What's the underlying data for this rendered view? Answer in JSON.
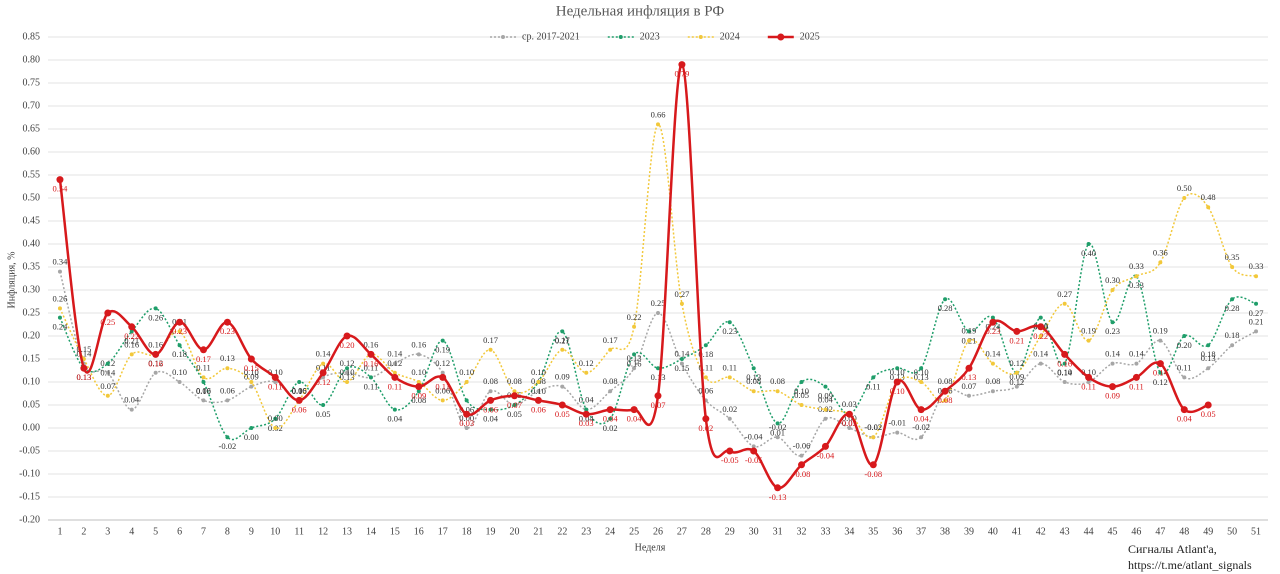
{
  "chart_data": {
    "type": "line",
    "title": "Недельная инфляция в РФ",
    "xlabel": "Неделя",
    "ylabel": "Инфляция, %",
    "annotations": [
      "Сигналы Atlant'a,",
      "https://t.me/atlant_signals"
    ],
    "categories": [
      "1",
      "2",
      "3",
      "4",
      "5",
      "6",
      "7",
      "8",
      "9",
      "10",
      "11",
      "12",
      "13",
      "14",
      "15",
      "16",
      "17",
      "18",
      "19",
      "20",
      "21",
      "22",
      "23",
      "24",
      "25",
      "26",
      "27",
      "28",
      "29",
      "30",
      "31",
      "32",
      "33",
      "34",
      "35",
      "36",
      "37",
      "38",
      "39",
      "40",
      "41",
      "42",
      "43",
      "44",
      "45",
      "46",
      "47",
      "48",
      "49",
      "50",
      "51"
    ],
    "ylim": [
      -0.2,
      0.85
    ],
    "yticks": [
      {
        "value": -0.2,
        "label": "-0.20"
      },
      {
        "value": -0.15,
        "label": "-0.15"
      },
      {
        "value": -0.1,
        "label": "-0.10"
      },
      {
        "value": -0.05,
        "label": "-0.05"
      },
      {
        "value": 0,
        "label": "0.00"
      },
      {
        "value": 0.05,
        "label": "0.05"
      },
      {
        "value": 0.1,
        "label": "0.10"
      },
      {
        "value": 0.15,
        "label": "0.15"
      },
      {
        "value": 0.2,
        "label": "0.20"
      },
      {
        "value": 0.25,
        "label": "0.25"
      },
      {
        "value": 0.3,
        "label": "0.30"
      },
      {
        "value": 0.35,
        "label": "0.35"
      },
      {
        "value": 0.4,
        "label": "0.40"
      },
      {
        "value": 0.45,
        "label": "0.45"
      },
      {
        "value": 0.5,
        "label": "0.50"
      },
      {
        "value": 0.55,
        "label": "0.55"
      },
      {
        "value": 0.6,
        "label": "0.60"
      },
      {
        "value": 0.65,
        "label": "0.65"
      },
      {
        "value": 0.7,
        "label": "0.70"
      },
      {
        "value": 0.75,
        "label": "0.75"
      },
      {
        "value": 0.8,
        "label": "0.80"
      },
      {
        "value": 0.85,
        "label": "0.85"
      }
    ],
    "grid": true,
    "legend": "top",
    "series": [
      {
        "name": "ср. 2017-2021",
        "color": "#a6a6a6",
        "style": "dotted",
        "width": 1.5,
        "values": [
          0.34,
          0.14,
          0.12,
          0.04,
          0.12,
          0.1,
          0.06,
          0.06,
          0.09,
          0.1,
          0.06,
          0.11,
          0.12,
          0.11,
          0.14,
          0.16,
          0.12,
          0.0,
          0.08,
          0.05,
          0.08,
          0.09,
          0.04,
          0.08,
          0.13,
          0.25,
          0.14,
          0.06,
          0.02,
          -0.04,
          -0.02,
          -0.06,
          0.02,
          0.0,
          -0.02,
          -0.01,
          -0.02,
          0.08,
          0.07,
          0.08,
          0.09,
          0.14,
          0.1,
          0.1,
          0.14,
          0.14,
          0.19,
          0.11,
          0.13,
          0.18,
          0.21
        ],
        "value_labels": [
          "0.34",
          "0.14",
          "0.12",
          "0.04",
          "0.12",
          "0.10",
          "0.06",
          "0.06",
          "0.09",
          "0.10",
          "0.06",
          "0.11",
          "0.12",
          "0.11",
          "0.14",
          "0.16",
          "0.12",
          "0.00",
          "0.08",
          "0.05",
          "0.08",
          "0.09",
          "0.04",
          "0.08",
          "0.13",
          "0.25",
          "0.14",
          "0.06",
          "0.02",
          "-0.04",
          "-0.02",
          "-0.06",
          "0.02",
          "0.00",
          "-0.02",
          "-0.01",
          "-0.02",
          "0.08",
          "0.07",
          "0.08",
          "0.09",
          "0.14",
          "0.10",
          "0.10",
          "0.14",
          "0.14",
          "0.19",
          "0.11",
          "0.13",
          "0.18",
          "0.21"
        ]
      },
      {
        "name": "2023",
        "color": "#1f9e6a",
        "style": "dotted",
        "width": 1.5,
        "values": [
          0.24,
          0.13,
          0.14,
          0.21,
          0.26,
          0.18,
          0.1,
          -0.02,
          0.0,
          0.02,
          0.1,
          0.05,
          0.13,
          0.11,
          0.04,
          0.08,
          0.19,
          0.06,
          0.04,
          0.05,
          0.1,
          0.21,
          0.04,
          0.02,
          0.16,
          0.13,
          0.15,
          0.18,
          0.23,
          0.13,
          0.01,
          0.1,
          0.09,
          0.03,
          0.11,
          0.13,
          0.13,
          0.28,
          0.21,
          0.24,
          0.12,
          0.24,
          0.14,
          0.4,
          0.23,
          0.33,
          0.12,
          0.2,
          0.18,
          0.28,
          0.27
        ],
        "value_labels": [
          "0.24",
          "0.13",
          "0.14",
          "0.21",
          "0.26",
          "0.18",
          "0.10",
          "-0.02",
          "0.00",
          "0.02",
          "0.10",
          "0.05",
          "0.13",
          "0.11",
          "0.04",
          "0.08",
          "0.19",
          "0.06",
          "0.04",
          "0.05",
          "0.10",
          "0.21",
          "0.04",
          "0.02",
          "0.16",
          "0.13",
          "0.15",
          "0.18",
          "0.23",
          "0.13",
          "0.01",
          "0.10",
          "0.09",
          "0.03",
          "0.11",
          "0.13",
          "0.13",
          "0.28",
          "0.21",
          "0.24",
          "0.12",
          "0.24",
          "0.14",
          "0.40",
          "0.23",
          "0.33",
          "0.12",
          "0.20",
          "0.18",
          "0.28",
          "0.27"
        ]
      },
      {
        "name": "2024",
        "color": "#f2c83a",
        "style": "dotted",
        "width": 1.5,
        "values": [
          0.26,
          0.15,
          0.07,
          0.16,
          0.16,
          0.21,
          0.11,
          0.13,
          0.1,
          0.0,
          0.06,
          0.14,
          0.1,
          0.16,
          0.12,
          0.1,
          0.06,
          0.1,
          0.17,
          0.08,
          0.1,
          0.17,
          0.12,
          0.17,
          0.22,
          0.66,
          0.27,
          0.11,
          0.11,
          0.08,
          0.08,
          0.05,
          0.04,
          0.03,
          -0.02,
          0.1,
          0.1,
          0.06,
          0.19,
          0.14,
          0.12,
          0.2,
          0.27,
          0.19,
          0.3,
          0.33,
          0.36,
          0.5,
          0.48,
          0.35,
          0.33
        ],
        "value_labels": [
          "0.26",
          "0.15",
          "0.07",
          "0.16",
          "0.16",
          "0.21",
          "0.11",
          "0.13",
          "0.10",
          "0.00",
          "0.06",
          "0.14",
          "0.10",
          "0.16",
          "0.12",
          "0.10",
          "0.06",
          "0.10",
          "0.17",
          "0.08",
          "0.10",
          "0.17",
          "0.12",
          "0.17",
          "0.22",
          "0.66",
          "0.27",
          "0.11",
          "0.11",
          "0.08",
          "0.08",
          "0.05",
          "0.04",
          "0.03",
          "-0.02",
          "0.10",
          "0.10",
          "0.06",
          "0.19",
          "0.14",
          "0.12",
          "0.20",
          "0.27",
          "0.19",
          "0.30",
          "0.33",
          "0.36",
          "0.50",
          "0.48",
          "0.35",
          "0.33"
        ]
      },
      {
        "name": "2025",
        "color": "#d7191c",
        "style": "solid",
        "width": 2.5,
        "values": [
          0.54,
          0.13,
          0.25,
          0.22,
          0.16,
          0.23,
          0.17,
          0.23,
          0.15,
          0.11,
          0.06,
          0.12,
          0.2,
          0.16,
          0.11,
          0.09,
          0.11,
          0.03,
          0.06,
          0.07,
          0.06,
          0.05,
          0.03,
          0.04,
          0.04,
          0.07,
          0.79,
          0.02,
          -0.05,
          -0.05,
          -0.13,
          -0.08,
          -0.04,
          0.03,
          -0.08,
          0.1,
          0.04,
          0.08,
          0.13,
          0.23,
          0.21,
          0.22,
          0.16,
          0.11,
          0.09,
          0.11,
          0.14,
          0.04,
          0.05,
          null,
          null
        ],
        "value_labels": [
          "0.54",
          "0.13",
          "0.25",
          "0.22",
          "0.16",
          "0.23",
          "0.17",
          "0.23",
          "0.15",
          "0.11",
          "0.06",
          "0.12",
          "0.20",
          "0.16",
          "0.11",
          "0.09",
          "0.11",
          "0.03",
          "0.06",
          "0.07",
          "0.06",
          "0.05",
          "0.03",
          "0.04",
          "0.04",
          "0.07",
          "0.79",
          "0.02",
          "-0.05",
          "-0.05",
          "-0.13",
          "-0.08",
          "-0.04",
          "0.03",
          "-0.08",
          "0.10",
          "0.04",
          "0.08",
          "0.13",
          "0.23",
          "0.21",
          "0.22",
          "0.16",
          "0.11",
          "0.09",
          "0.11",
          "0.14",
          "0.04",
          "0.05",
          null,
          null
        ]
      }
    ]
  }
}
